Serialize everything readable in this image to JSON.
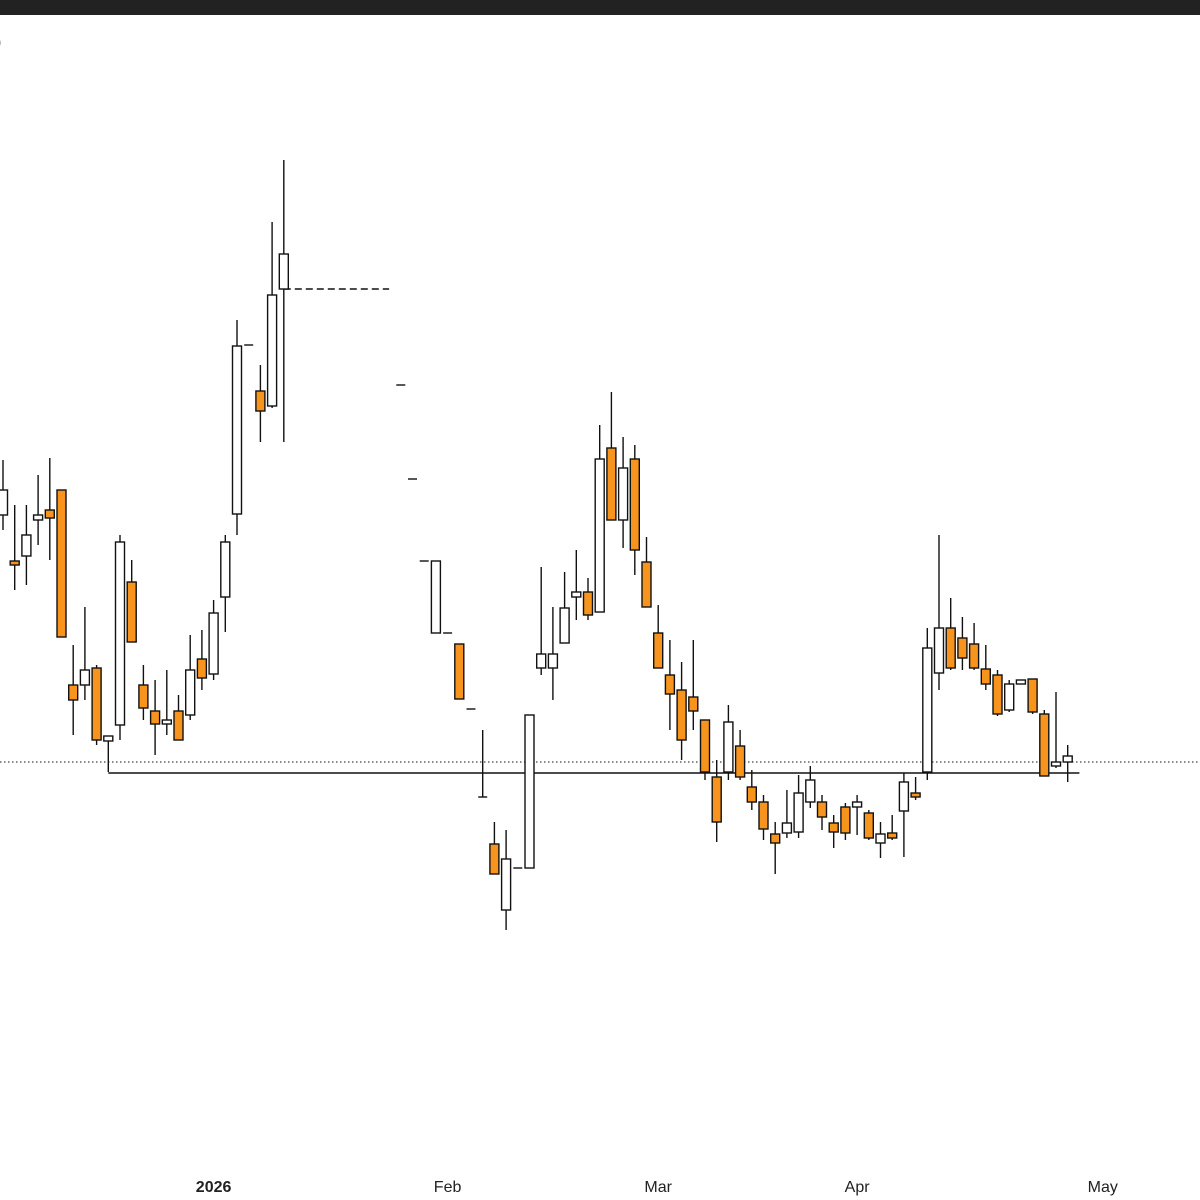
{
  "chart_data": {
    "type": "candlestick",
    "title": ")",
    "categories": [
      null,
      null,
      null,
      null,
      null,
      null,
      null,
      null,
      null,
      null,
      null,
      null,
      null,
      null,
      null,
      null,
      null,
      null,
      "2026",
      null,
      null,
      null,
      null,
      null,
      null,
      null,
      null,
      null,
      null,
      null,
      null,
      null,
      null,
      null,
      null,
      null,
      null,
      null,
      "Feb",
      null,
      null,
      null,
      null,
      null,
      null,
      null,
      null,
      null,
      null,
      null,
      null,
      null,
      null,
      null,
      null,
      null,
      "Mar",
      null,
      null,
      null,
      null,
      null,
      null,
      null,
      null,
      null,
      null,
      null,
      null,
      null,
      null,
      null,
      null,
      "Apr",
      null,
      null,
      null,
      null,
      null,
      null,
      null,
      null,
      null,
      null,
      null,
      null,
      null,
      null,
      null,
      null,
      null,
      null,
      null,
      null,
      "May",
      null,
      null,
      null,
      null,
      null,
      null,
      null
    ],
    "open": [
      650,
      604,
      609,
      645,
      655,
      675,
      480,
      480,
      497,
      424,
      440,
      583,
      480,
      454,
      441,
      454,
      450,
      506,
      491,
      568,
      651,
      820,
      774,
      759,
      876,
      null,
      null,
      null,
      null,
      null,
      null,
      null,
      null,
      null,
      780,
      686,
      604,
      532,
      532,
      521,
      456,
      368,
      321,
      255,
      297,
      297,
      497,
      497,
      522,
      568,
      573,
      553,
      717,
      645,
      706,
      603,
      532,
      490,
      475,
      468,
      445,
      388,
      393,
      419,
      378,
      363,
      331,
      332,
      333,
      363,
      363,
      342,
      358,
      358,
      352,
      322,
      332,
      354,
      372,
      393,
      492,
      537,
      527,
      521,
      496,
      490,
      455,
      481,
      486,
      451,
      399,
      403,
      null,
      null,
      null,
      null,
      null,
      null,
      null,
      null,
      null,
      null
    ],
    "high": [
      705,
      660,
      660,
      690,
      707,
      675,
      520,
      558,
      500,
      429,
      630,
      605,
      500,
      485,
      495,
      470,
      530,
      535,
      565,
      630,
      845,
      820,
      800,
      943,
      1005,
      null,
      null,
      null,
      null,
      null,
      null,
      null,
      null,
      null,
      780,
      686,
      604,
      604,
      532,
      521,
      456,
      435,
      343,
      335,
      297,
      450,
      598,
      558,
      593,
      615,
      587,
      740,
      773,
      728,
      720,
      628,
      560,
      525,
      503,
      525,
      445,
      405,
      460,
      435,
      395,
      370,
      343,
      375,
      390,
      399,
      370,
      350,
      362,
      370,
      355,
      343,
      350,
      392,
      388,
      537,
      630,
      567,
      548,
      542,
      520,
      495,
      485,
      485,
      486,
      455,
      473,
      420,
      null,
      null,
      null,
      null,
      null,
      null,
      null,
      null,
      null,
      null
    ],
    "low": [
      635,
      575,
      580,
      620,
      605,
      528,
      430,
      465,
      420,
      393,
      425,
      523,
      445,
      410,
      430,
      425,
      445,
      475,
      485,
      533,
      630,
      820,
      723,
      757,
      723,
      null,
      null,
      null,
      null,
      null,
      null,
      null,
      null,
      null,
      780,
      686,
      604,
      532,
      532,
      466,
      456,
      368,
      291,
      235,
      297,
      297,
      490,
      465,
      522,
      545,
      545,
      553,
      645,
      617,
      590,
      558,
      497,
      435,
      405,
      435,
      385,
      323,
      385,
      385,
      355,
      325,
      291,
      327,
      327,
      357,
      335,
      317,
      325,
      330,
      325,
      307,
      325,
      308,
      365,
      385,
      475,
      495,
      495,
      495,
      475,
      449,
      453,
      481,
      451,
      389,
      397,
      383,
      null,
      null,
      null,
      null,
      null,
      null,
      null,
      null,
      null,
      null
    ],
    "close": [
      675,
      600,
      630,
      650,
      647,
      528,
      465,
      495,
      425,
      429,
      623,
      523,
      457,
      441,
      445,
      425,
      495,
      487,
      552,
      623,
      819,
      820,
      754,
      870,
      911,
      null,
      null,
      null,
      null,
      null,
      null,
      null,
      null,
      null,
      780,
      686,
      604,
      604,
      532,
      466,
      456,
      368,
      291,
      306,
      297,
      450,
      511,
      511,
      557,
      573,
      550,
      706,
      645,
      697,
      615,
      558,
      497,
      471,
      425,
      454,
      393,
      343,
      443,
      388,
      363,
      336,
      322,
      342,
      372,
      385,
      348,
      333,
      332,
      363,
      327,
      331,
      327,
      383,
      368,
      517,
      537,
      497,
      507,
      497,
      481,
      451,
      481,
      485,
      453,
      389,
      403,
      409,
      null,
      null,
      null,
      null,
      null,
      null,
      null,
      null,
      null,
      null
    ],
    "up_color": "#ffffff",
    "down_color": "#f7941d",
    "levels": [
      {
        "value": 403,
        "style": "dotted"
      },
      {
        "value": 392,
        "style": "solid",
        "from": 9,
        "to": 92
      },
      {
        "value": 876,
        "style": "dashed",
        "from": 24,
        "to": 33
      }
    ],
    "ylim": [
      0,
      1150
    ]
  }
}
